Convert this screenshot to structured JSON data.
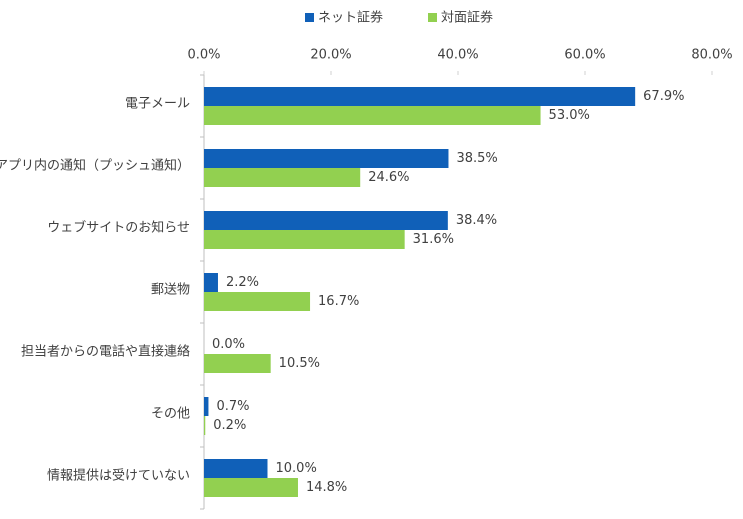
{
  "chart_data": {
    "type": "bar",
    "orientation": "horizontal",
    "categories": [
      "電子メール",
      "アプリ内の通知（プッシュ通知）",
      "ウェブサイトのお知らせ",
      "郵送物",
      "担当者からの電話や直接連絡",
      "その他",
      "情報提供は受けていない"
    ],
    "series": [
      {
        "name": "ネット証券",
        "color": "#1060b8",
        "values": [
          67.9,
          38.5,
          38.4,
          2.2,
          0.0,
          0.7,
          10.0
        ],
        "value_labels": [
          "67.9%",
          "38.5%",
          "38.4%",
          "2.2%",
          "0.0%",
          "0.7%",
          "10.0%"
        ]
      },
      {
        "name": "対面証券",
        "color": "#92d050",
        "values": [
          53.0,
          24.6,
          31.6,
          16.7,
          10.5,
          0.2,
          14.8
        ],
        "value_labels": [
          "53.0%",
          "24.6%",
          "31.6%",
          "16.7%",
          "10.5%",
          "0.2%",
          "14.8%"
        ]
      }
    ],
    "xlim": [
      0,
      80
    ],
    "xticks": [
      {
        "value": 0,
        "label": "0.0%"
      },
      {
        "value": 20,
        "label": "20.0%"
      },
      {
        "value": 40,
        "label": "40.0%"
      },
      {
        "value": 60,
        "label": "60.0%"
      },
      {
        "value": 80,
        "label": "80.0%"
      }
    ],
    "legend_position": "top"
  }
}
